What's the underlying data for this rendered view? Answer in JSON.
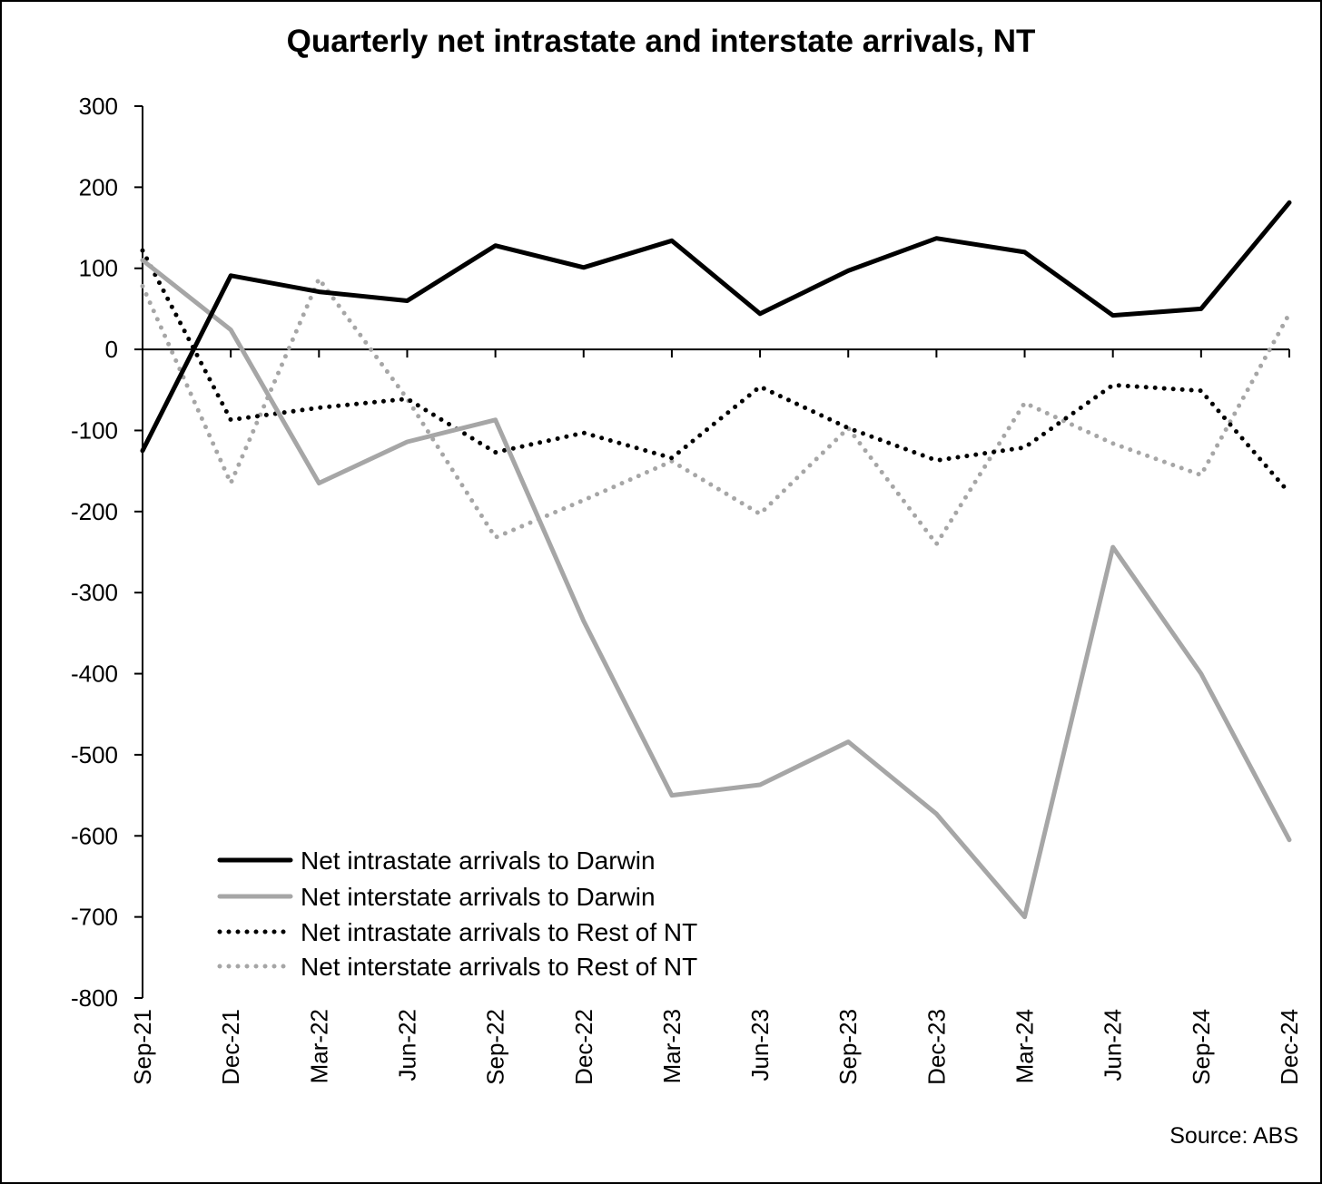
{
  "chart_data": {
    "type": "line",
    "title": "Quarterly net intrastate and interstate arrivals, NT",
    "source": "Source: ABS",
    "xlabel": "",
    "ylabel": "",
    "categories": [
      "Sep-21",
      "Dec-21",
      "Mar-22",
      "Jun-22",
      "Sep-22",
      "Dec-22",
      "Mar-23",
      "Jun-23",
      "Sep-23",
      "Dec-23",
      "Mar-24",
      "Jun-24",
      "Sep-24",
      "Dec-24"
    ],
    "ylim": [
      -800,
      300
    ],
    "yticks": [
      "300",
      "200",
      "100",
      "0",
      "-100",
      "-200",
      "-300",
      "-400",
      "-500",
      "-600",
      "-700",
      "-800"
    ],
    "grid": false,
    "legend_position": "bottom-left",
    "series": [
      {
        "name": "Net intrastate arrivals to Darwin",
        "color": "#000000",
        "style": "solid",
        "values": [
          -125,
          91,
          71,
          60,
          128,
          101,
          134,
          44,
          97,
          137,
          120,
          42,
          50,
          181
        ]
      },
      {
        "name": "Net interstate arrivals to Darwin",
        "color": "#a6a6a6",
        "style": "solid",
        "values": [
          110,
          24,
          -165,
          -114,
          -87,
          -335,
          -550,
          -537,
          -484,
          -573,
          -700,
          -244,
          -400,
          -605
        ]
      },
      {
        "name": "Net intrastate arrivals to Rest of NT",
        "color": "#000000",
        "style": "dotted",
        "values": [
          122,
          -87,
          -72,
          -61,
          -127,
          -103,
          -134,
          -46,
          -97,
          -137,
          -121,
          -44,
          -51,
          -177
        ]
      },
      {
        "name": "Net interstate arrivals to Rest of NT",
        "color": "#a6a6a6",
        "style": "dotted",
        "values": [
          78,
          -165,
          87,
          -61,
          -232,
          -186,
          -138,
          -203,
          -97,
          -240,
          -66,
          -116,
          -155,
          44
        ]
      }
    ]
  }
}
